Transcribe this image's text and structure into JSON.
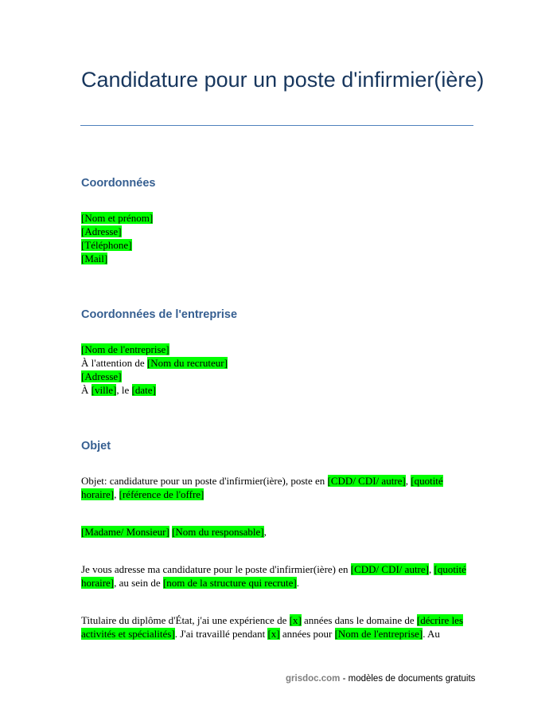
{
  "title": "Candidature pour un poste d'infirmier(ière)",
  "colors": {
    "title": "#17365d",
    "heading": "#365f91",
    "rule": "#4f81bd",
    "highlight": "#00ff00"
  },
  "sections": [
    {
      "heading": "Coordonnées",
      "paragraphs": [
        [
          [
            {
              "t": "[Nom et prénom]",
              "h": true
            }
          ],
          [
            {
              "t": "[Adresse]",
              "h": true
            }
          ],
          [
            {
              "t": "[Téléphone]",
              "h": true
            }
          ],
          [
            {
              "t": "[Mail]",
              "h": true
            }
          ]
        ]
      ]
    },
    {
      "heading": "Coordonnées de l'entreprise",
      "paragraphs": [
        [
          [
            {
              "t": "[Nom de l'entreprise]",
              "h": true
            }
          ],
          [
            {
              "t": "À l'attention de ",
              "h": false
            },
            {
              "t": "[Nom du recruteur]",
              "h": true
            }
          ],
          [
            {
              "t": "[Adresse]",
              "h": true
            }
          ],
          [
            {
              "t": "À ",
              "h": false
            },
            {
              "t": "[ville]",
              "h": true
            },
            {
              "t": ", le ",
              "h": false
            },
            {
              "t": "[date]",
              "h": true
            }
          ]
        ]
      ]
    },
    {
      "heading": "Objet",
      "paragraphs": [
        [
          [
            {
              "t": "Objet: candidature pour un poste d'infirmier(ière), poste en ",
              "h": false
            },
            {
              "t": "[CDD/ CDI/ autre]",
              "h": true
            },
            {
              "t": ", ",
              "h": false
            },
            {
              "t": "[quotité horaire]",
              "h": true
            },
            {
              "t": ", ",
              "h": false
            },
            {
              "t": "[référence de l'offre]",
              "h": true
            }
          ]
        ],
        [
          [
            {
              "t": "[Madame/ Monsieur]",
              "h": true
            },
            {
              "t": " ",
              "h": false
            },
            {
              "t": "[Nom du responsable]",
              "h": true
            },
            {
              "t": ",",
              "h": false
            }
          ]
        ],
        [
          [
            {
              "t": "Je vous adresse ma candidature pour le poste d'infirmier(ière) en ",
              "h": false
            },
            {
              "t": "[CDD/ CDI/ autre]",
              "h": true
            },
            {
              "t": ", ",
              "h": false
            },
            {
              "t": "[quotité horaire]",
              "h": true
            },
            {
              "t": ", au sein de ",
              "h": false
            },
            {
              "t": "[nom de la structure qui recrute]",
              "h": true
            },
            {
              "t": ".",
              "h": false
            }
          ]
        ],
        [
          [
            {
              "t": "Titulaire du diplôme d'État, j'ai une expérience de ",
              "h": false
            },
            {
              "t": "[x]",
              "h": true
            },
            {
              "t": " années dans le domaine de ",
              "h": false
            },
            {
              "t": "[décrire les activités et spécialités]",
              "h": true
            },
            {
              "t": ". J'ai travaillé pendant ",
              "h": false
            },
            {
              "t": "[x]",
              "h": true
            },
            {
              "t": " années pour ",
              "h": false
            },
            {
              "t": "[Nom de l'entreprise]",
              "h": true
            },
            {
              "t": ". Au",
              "h": false
            }
          ]
        ]
      ]
    }
  ],
  "footer": {
    "site": "grisdoc.com",
    "tagline": " - modèles de documents gratuits"
  }
}
